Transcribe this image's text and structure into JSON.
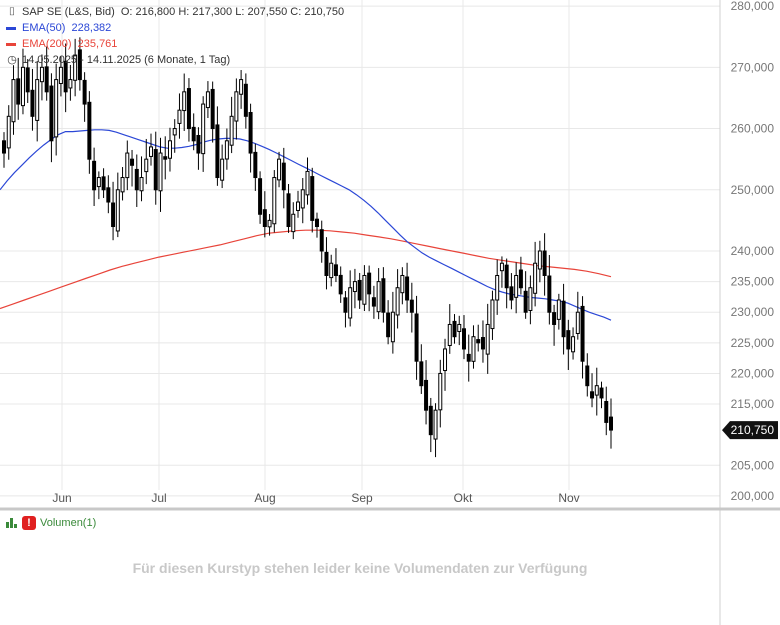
{
  "header": {
    "instrument": "SAP SE (L&S, Bid)",
    "ohlc": "O: 216,800   H: 217,300   L: 207,550   C: 210,750",
    "ema50_label": "EMA(50)",
    "ema50_value": "228,382",
    "ema200_label": "EMA(200)",
    "ema200_value": "235,761",
    "period": "14.05.2025 - 14.11.2025   (6 Monate, 1 Tag)"
  },
  "volume": {
    "label": "Volumen(1)",
    "message": "Für diesen Kurstyp stehen leider keine Volumendaten zur Verfügung"
  },
  "colors": {
    "ema50": "#2b47d6",
    "ema200": "#e8443a",
    "candle": "#000000",
    "grid": "#e8e8e8"
  },
  "chart_data": {
    "type": "candlestick",
    "ylim": [
      199,
      281
    ],
    "y_ticks": [
      200,
      205,
      215,
      220,
      225,
      230,
      235,
      240,
      250,
      260,
      270,
      280
    ],
    "y_tick_labels": [
      "200,000",
      "205,000",
      "215,000",
      "220,000",
      "225,000",
      "230,000",
      "235,000",
      "240,000",
      "250,000",
      "260,000",
      "270,000",
      "280,000"
    ],
    "x_labels": [
      "Jun",
      "Jul",
      "Aug",
      "Sep",
      "Okt",
      "Nov"
    ],
    "last_price": 210.75,
    "last_price_label": "210,750",
    "closes": [
      256,
      262,
      268,
      264,
      270,
      266,
      262,
      268,
      270,
      266,
      258,
      268,
      270,
      266,
      268,
      272,
      268,
      264,
      255,
      250,
      252,
      250,
      248,
      244,
      250,
      252,
      256,
      254,
      250,
      252,
      255,
      257,
      250,
      256,
      255,
      258,
      260,
      263,
      266,
      260,
      258,
      256,
      264,
      266,
      260,
      252,
      255,
      258,
      262,
      266,
      268,
      262,
      256,
      252,
      246,
      244,
      245,
      252,
      255,
      250,
      244,
      246,
      248,
      250,
      253,
      245,
      244,
      240,
      236,
      238,
      236,
      233,
      230,
      234,
      235,
      232,
      236,
      233,
      231,
      235,
      230,
      226,
      230,
      234,
      236,
      232,
      230,
      222,
      218,
      214,
      210,
      214,
      220,
      224,
      228,
      226,
      228,
      224,
      222,
      226,
      225,
      224,
      228,
      232,
      236,
      238,
      234,
      232,
      236,
      234,
      230,
      234,
      238,
      240,
      236,
      230,
      228,
      232,
      226,
      224,
      226,
      230,
      222,
      218,
      216,
      218,
      216,
      212,
      210.75
    ],
    "ema50": [
      250,
      251.5,
      252.8,
      254,
      255.2,
      256.3,
      257.3,
      258.2,
      259,
      259.5,
      259.5,
      259.6,
      259.7,
      259.8,
      259.8,
      259.7,
      259.4,
      259,
      258.6,
      258.2,
      257.8,
      257.4,
      257,
      256.8,
      256.8,
      256.9,
      257.1,
      257.4,
      257.8,
      258.1,
      258.3,
      258.4,
      258.4,
      258.3,
      258,
      257.6,
      257.1,
      256.6,
      256,
      255.4,
      254.8,
      254.2,
      253.6,
      253,
      252.4,
      251.8,
      251.2,
      250.6,
      250,
      249.2,
      248.3,
      247.3,
      246.2,
      245,
      243.8,
      242.6,
      241.5,
      240.6,
      239.7,
      239,
      238.4,
      237.8,
      237.2,
      236.6,
      236,
      235.4,
      234.8,
      234.2,
      233.7,
      233.3,
      233,
      232.8,
      232.6,
      232.4,
      232.3,
      232.2,
      232,
      231.8,
      231.5,
      231,
      230.5,
      230,
      229.6,
      229.2,
      228.7
    ],
    "ema200": [
      230.6,
      231.3,
      232,
      232.7,
      233.4,
      234.1,
      234.8,
      235.5,
      236.2,
      236.9,
      237.5,
      238,
      238.5,
      239,
      239.4,
      239.8,
      240.2,
      240.6,
      241,
      241.5,
      242,
      242.5,
      242.9,
      243.1,
      243.3,
      243.4,
      243.4,
      243.3,
      243.1,
      242.9,
      242.6,
      242.3,
      242,
      241.6,
      241.2,
      240.8,
      240.4,
      240,
      239.6,
      239.2,
      238.8,
      238.5,
      238.2,
      237.9,
      237.6,
      237.4,
      237.2,
      237,
      236.7,
      236.3,
      235.8
    ]
  }
}
